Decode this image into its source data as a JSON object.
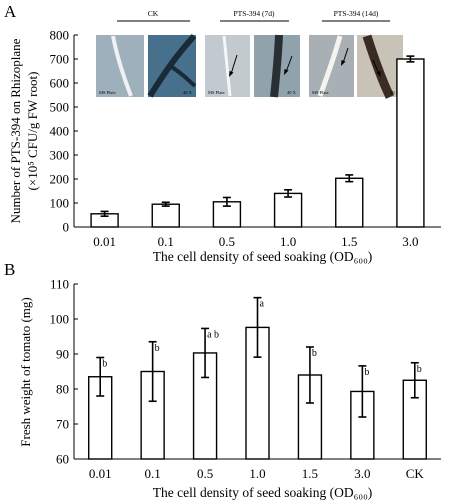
{
  "panels": {
    "a": "A",
    "b": "B"
  },
  "insets": {
    "groups": [
      "CK",
      "PTS-394 (7d)",
      "PTS-394 (14d)"
    ],
    "plate_label": "MS Plate",
    "mag_label": "40 X"
  },
  "chart_data": [
    {
      "type": "bar",
      "panel": "A",
      "categories": [
        "0.01",
        "0.1",
        "0.5",
        "1.0",
        "1.5",
        "3.0"
      ],
      "values": [
        55,
        95,
        105,
        140,
        203,
        700
      ],
      "errors": [
        10,
        8,
        18,
        15,
        14,
        12
      ],
      "ylabel_lines": [
        "Number of PTS-394 on Rhizoplane",
        "(×10⁵ CFU/g FW root)"
      ],
      "xlabel": "The cell density of seed soaking (OD₆₀₀)",
      "ylim": [
        0,
        800
      ],
      "yticks": [
        "0",
        "100",
        "200",
        "300",
        "400",
        "500",
        "600",
        "700",
        "800"
      ]
    },
    {
      "type": "bar",
      "panel": "B",
      "categories": [
        "0.01",
        "0.1",
        "0.5",
        "1.0",
        "1.5",
        "3.0",
        "CK"
      ],
      "values": [
        83.5,
        85,
        90.3,
        97.6,
        84,
        79.3,
        82.5
      ],
      "errors": [
        5.5,
        8.5,
        7,
        8.5,
        8,
        7.3,
        5
      ],
      "letters": [
        "b",
        "b",
        "a b",
        "a",
        "b",
        "b",
        "b"
      ],
      "ylabel": "Fresh weight of tomato (mg)",
      "xlabel": "The cell density of seed soaking (OD₆₀₀)",
      "ylim": [
        60,
        110
      ],
      "yticks": [
        "60",
        "70",
        "80",
        "90",
        "100",
        "110"
      ]
    }
  ]
}
